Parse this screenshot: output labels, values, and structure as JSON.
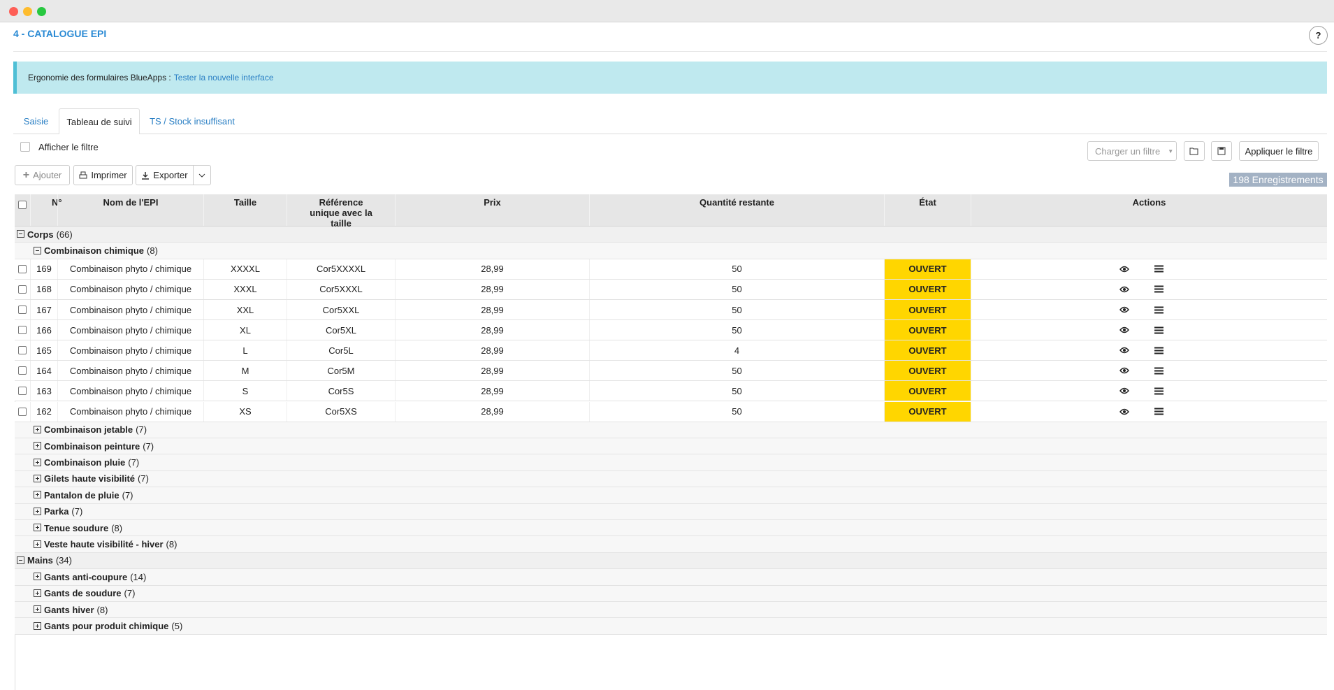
{
  "header": {
    "title": "4 - CATALOGUE EPI",
    "help": "?"
  },
  "banner": {
    "text": "Ergonomie des formulaires BlueApps :",
    "link": "Tester la nouvelle interface"
  },
  "tabs": {
    "items": [
      "Saisie",
      "Tableau de suivi",
      "TS / Stock insuffisant"
    ],
    "active": 1
  },
  "filter": {
    "show": "Afficher le filtre",
    "load": "Charger un filtre",
    "apply": "Appliquer le filtre"
  },
  "toolbar": {
    "add": "Ajouter",
    "print": "Imprimer",
    "export": "Exporter"
  },
  "records": "198 Enregistrements",
  "table": {
    "columns": [
      "N°",
      "Nom de l'EPI",
      "Taille",
      "Référence unique avec la taille",
      "Prix",
      "Quantité restante",
      "État",
      "Actions"
    ],
    "groups": [
      {
        "name": "Corps",
        "count": "(66)",
        "subgroups": [
          {
            "name": "Combinaison chimique",
            "count": "(8)",
            "rows": [
              [
                "169",
                "Combinaison phyto / chimique",
                "XXXXL",
                "Cor5XXXXL",
                "28,99",
                "50",
                "OUVERT"
              ],
              [
                "168",
                "Combinaison phyto / chimique",
                "XXXL",
                "Cor5XXXL",
                "28,99",
                "50",
                "OUVERT"
              ],
              [
                "167",
                "Combinaison phyto / chimique",
                "XXL",
                "Cor5XXL",
                "28,99",
                "50",
                "OUVERT"
              ],
              [
                "166",
                "Combinaison phyto / chimique",
                "XL",
                "Cor5XL",
                "28,99",
                "50",
                "OUVERT"
              ],
              [
                "165",
                "Combinaison phyto / chimique",
                "L",
                "Cor5L",
                "28,99",
                "4",
                "OUVERT"
              ],
              [
                "164",
                "Combinaison phyto / chimique",
                "M",
                "Cor5M",
                "28,99",
                "50",
                "OUVERT"
              ],
              [
                "163",
                "Combinaison phyto / chimique",
                "S",
                "Cor5S",
                "28,99",
                "50",
                "OUVERT"
              ],
              [
                "162",
                "Combinaison phyto / chimique",
                "XS",
                "Cor5XS",
                "28,99",
                "50",
                "OUVERT"
              ]
            ]
          },
          {
            "name": "Combinaison jetable",
            "count": "(7)"
          },
          {
            "name": "Combinaison peinture",
            "count": "(7)"
          },
          {
            "name": "Combinaison pluie",
            "count": "(7)"
          },
          {
            "name": "Gilets haute visibilité",
            "count": "(7)"
          },
          {
            "name": "Pantalon de pluie",
            "count": "(7)"
          },
          {
            "name": "Parka",
            "count": "(7)"
          },
          {
            "name": "Tenue soudure",
            "count": "(8)"
          },
          {
            "name": "Veste haute visibilité - hiver",
            "count": "(8)"
          }
        ]
      },
      {
        "name": "Mains",
        "count": "(34)",
        "subgroups": [
          {
            "name": "Gants anti-coupure",
            "count": "(14)"
          },
          {
            "name": "Gants de soudure",
            "count": "(7)"
          },
          {
            "name": "Gants hiver",
            "count": "(8)"
          },
          {
            "name": "Gants pour produit chimique",
            "count": "(5)"
          }
        ]
      }
    ]
  }
}
